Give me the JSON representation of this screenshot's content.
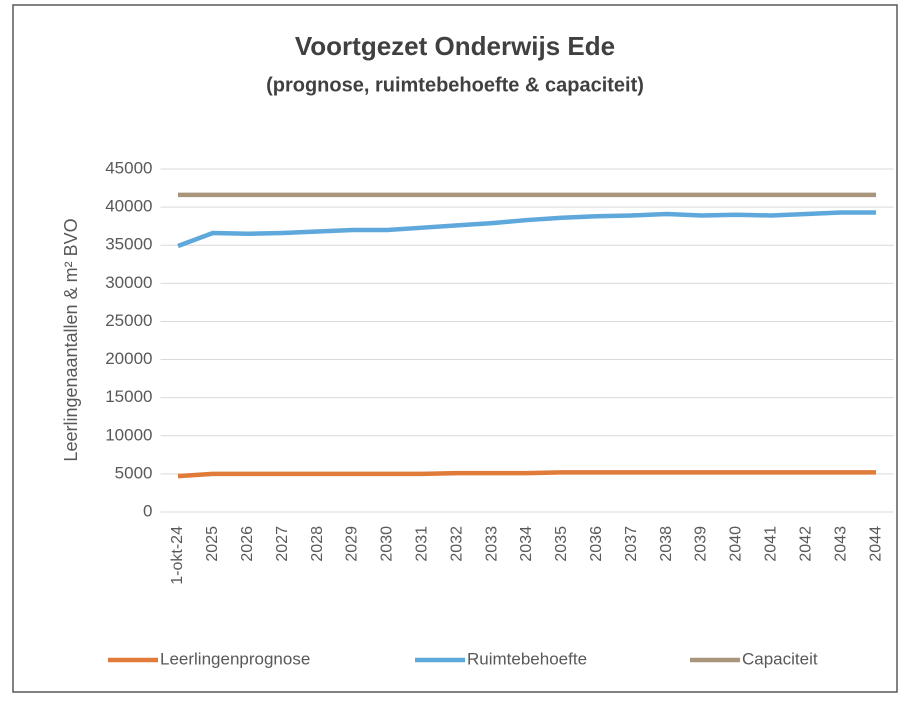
{
  "chart_data": {
    "type": "line",
    "title": "Voortgezet Onderwijs Ede",
    "subtitle": "(prognose, ruimtebehoefte & capaciteit)",
    "ylabel": "Leerlingenaantallen & m² BVO",
    "categories": [
      "1-okt-24",
      "2025",
      "2026",
      "2027",
      "2028",
      "2029",
      "2030",
      "2031",
      "2032",
      "2033",
      "2034",
      "2035",
      "2036",
      "2037",
      "2038",
      "2039",
      "2040",
      "2041",
      "2042",
      "2043",
      "2044"
    ],
    "series": [
      {
        "name": "Leerlingenprognose",
        "color": "#e07b39",
        "values": [
          4700,
          5000,
          5000,
          5000,
          5000,
          5000,
          5000,
          5000,
          5100,
          5100,
          5100,
          5200,
          5200,
          5200,
          5200,
          5200,
          5200,
          5200,
          5200,
          5200,
          5200
        ]
      },
      {
        "name": "Ruimtebehoefte",
        "color": "#5fa8dc",
        "values": [
          34900,
          36600,
          36500,
          36600,
          36800,
          37000,
          37000,
          37300,
          37600,
          37900,
          38300,
          38600,
          38800,
          38900,
          39100,
          38900,
          39000,
          38900,
          39100,
          39300,
          39300
        ]
      },
      {
        "name": "Capaciteit",
        "color": "#a8957a",
        "values": [
          41600,
          41600,
          41600,
          41600,
          41600,
          41600,
          41600,
          41600,
          41600,
          41600,
          41600,
          41600,
          41600,
          41600,
          41600,
          41600,
          41600,
          41600,
          41600,
          41600,
          41600
        ]
      }
    ],
    "ylim": [
      0,
      45000
    ],
    "yticks": [
      0,
      5000,
      10000,
      15000,
      20000,
      25000,
      30000,
      35000,
      40000,
      45000
    ],
    "grid": true,
    "legend": "bottom"
  }
}
